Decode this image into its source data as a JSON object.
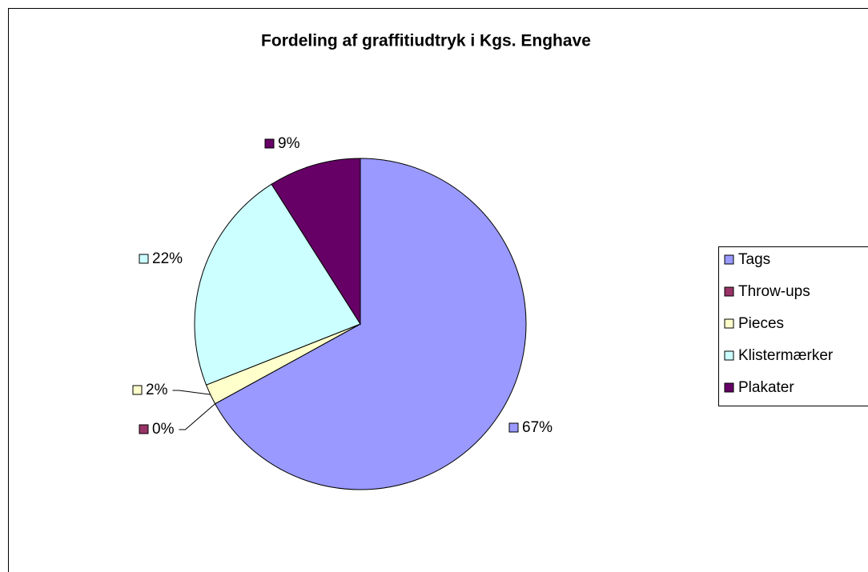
{
  "chart_data": {
    "type": "pie",
    "title": "Fordeling af graffitiudtryk i Kgs. Enghave",
    "categories": [
      "Tags",
      "Throw-ups",
      "Pieces",
      "Klistermærker",
      "Plakater"
    ],
    "values": [
      67,
      0,
      2,
      22,
      9
    ],
    "value_labels": [
      "67%",
      "0%",
      "2%",
      "22%",
      "9%"
    ],
    "colors": [
      "#9999ff",
      "#993366",
      "#ffffcc",
      "#ccffff",
      "#660066"
    ],
    "legend": "right"
  }
}
